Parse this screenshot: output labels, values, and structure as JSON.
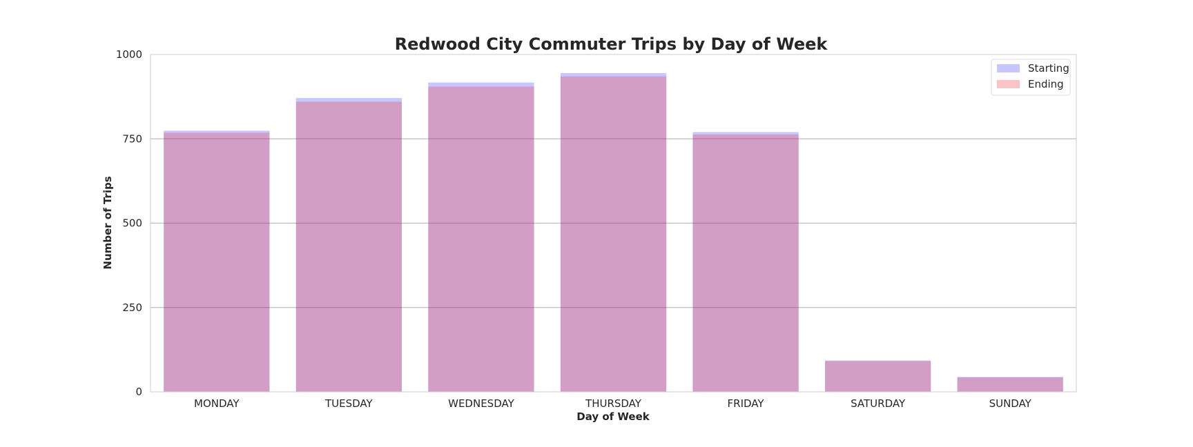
{
  "chart_data": {
    "type": "bar",
    "title": "Redwood City Commuter Trips by Day of Week",
    "xlabel": "Day of Week",
    "ylabel": "Number of Trips",
    "categories": [
      "MONDAY",
      "TUESDAY",
      "WEDNESDAY",
      "THURSDAY",
      "FRIDAY",
      "SATURDAY",
      "SUNDAY"
    ],
    "series": [
      {
        "name": "Starting",
        "values": [
          774,
          871,
          917,
          945,
          770,
          93,
          44
        ],
        "color": "#0000ff",
        "opacity": 0.22
      },
      {
        "name": "Ending",
        "values": [
          768,
          860,
          905,
          935,
          763,
          91,
          43
        ],
        "color": "#e8474a",
        "opacity": 0.32
      }
    ],
    "ylim": [
      0,
      1000
    ],
    "yticks": [
      0,
      250,
      500,
      750,
      1000
    ],
    "grid": true,
    "legend_position": "top-right",
    "overlap_color": "#cc9cc0"
  }
}
